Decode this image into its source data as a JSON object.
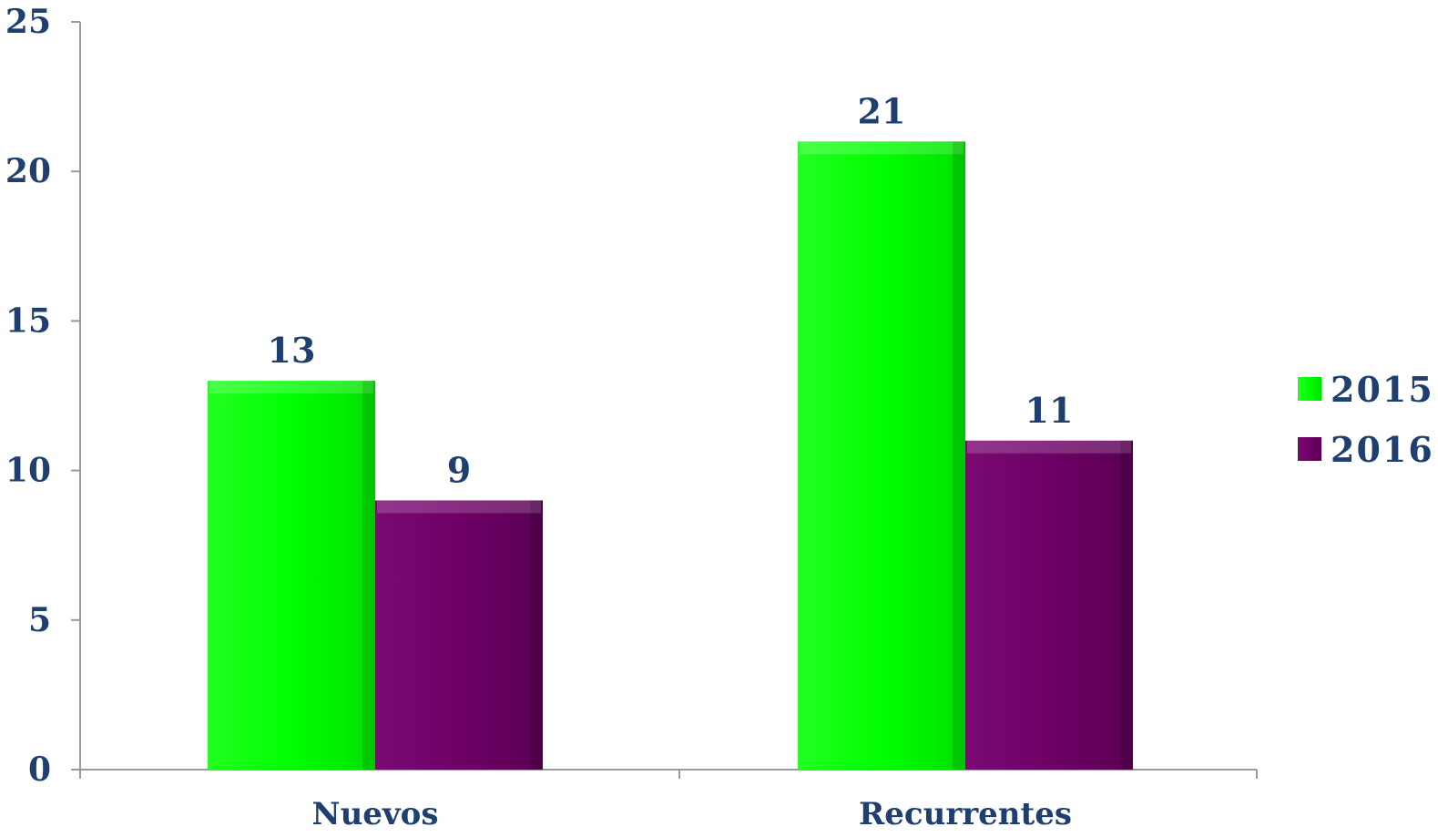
{
  "chart_data": {
    "type": "bar",
    "categories": [
      "Nuevos",
      "Recurrentes"
    ],
    "series": [
      {
        "name": "2015",
        "values": [
          13,
          21
        ],
        "color": "#00ff00"
      },
      {
        "name": "2016",
        "values": [
          9,
          11
        ],
        "color": "#6e0066"
      }
    ],
    "y_ticks": [
      0,
      5,
      10,
      15,
      20,
      25
    ],
    "ylim": [
      0,
      25
    ],
    "title": "",
    "xlabel": "",
    "ylabel": "",
    "grid": false,
    "legend_position": "right",
    "data_labels": true,
    "text_color": "#1f3f6e",
    "axis_color": "#9a9a9a"
  }
}
